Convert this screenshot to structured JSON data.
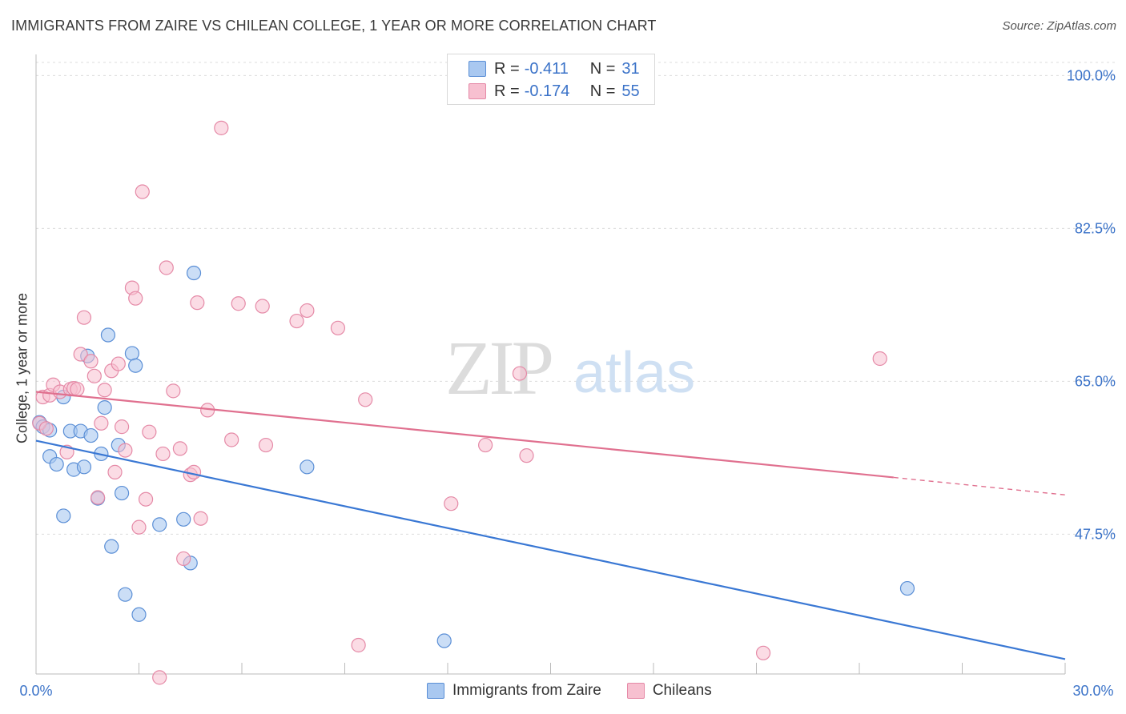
{
  "title": "IMMIGRANTS FROM ZAIRE VS CHILEAN COLLEGE, 1 YEAR OR MORE CORRELATION CHART",
  "source": "Source: ZipAtlas.com",
  "watermark": {
    "zip": "ZIP",
    "atlas": "atlas"
  },
  "legend": {
    "rows": [
      {
        "r_label": "R =",
        "r_value": "-0.411",
        "n_label": "N =",
        "n_value": "31",
        "color": "#a9c8f0"
      },
      {
        "r_label": "R =",
        "r_value": "-0.174",
        "n_label": "N =",
        "n_value": "55",
        "color": "#f7bfd0"
      }
    ]
  },
  "bottom_legend": {
    "series1": "Immigrants from Zaire",
    "series2": "Chileans"
  },
  "colors": {
    "blue_fill": "#a9c8f0",
    "blue_stroke": "#5b8fd6",
    "blue_line": "#3a78d4",
    "pink_fill": "#f7c0d0",
    "pink_stroke": "#e58aa7",
    "pink_line": "#e0708f",
    "tick_text": "#3a72c8",
    "grid": "#dcdcdc"
  },
  "chart_data": {
    "type": "scatter",
    "title": "IMMIGRANTS FROM ZAIRE VS CHILEAN COLLEGE, 1 YEAR OR MORE CORRELATION CHART",
    "xlabel": "",
    "ylabel": "College, 1 year or more",
    "xlim": [
      0,
      30
    ],
    "ylim": [
      31.5,
      101.5
    ],
    "x_tick_labels": [
      "0.0%",
      "30.0%"
    ],
    "y_ticks": [
      47.5,
      65.0,
      82.5,
      100.0
    ],
    "y_tick_labels": [
      "47.5%",
      "65.0%",
      "82.5%",
      "100.0%"
    ],
    "series": [
      {
        "name": "Immigrants from Zaire",
        "points": [
          [
            0.1,
            60.3
          ],
          [
            0.2,
            59.8
          ],
          [
            0.4,
            59.4
          ],
          [
            0.4,
            56.4
          ],
          [
            0.6,
            55.5
          ],
          [
            0.8,
            63.2
          ],
          [
            1.0,
            59.3
          ],
          [
            1.1,
            54.9
          ],
          [
            1.3,
            59.3
          ],
          [
            1.4,
            55.2
          ],
          [
            1.5,
            67.9
          ],
          [
            1.6,
            58.8
          ],
          [
            1.8,
            51.6
          ],
          [
            1.9,
            56.7
          ],
          [
            2.0,
            62.0
          ],
          [
            2.1,
            70.3
          ],
          [
            2.2,
            46.1
          ],
          [
            2.4,
            57.7
          ],
          [
            2.5,
            52.2
          ],
          [
            2.6,
            40.6
          ],
          [
            2.8,
            68.2
          ],
          [
            2.9,
            66.8
          ],
          [
            3.0,
            38.3
          ],
          [
            3.6,
            48.6
          ],
          [
            4.3,
            49.2
          ],
          [
            4.5,
            44.2
          ],
          [
            4.6,
            77.4
          ],
          [
            7.9,
            55.2
          ],
          [
            11.9,
            35.3
          ],
          [
            25.4,
            41.3
          ],
          [
            0.8,
            49.6
          ]
        ],
        "trend": {
          "x": [
            0,
            30
          ],
          "y": [
            58.2,
            33.2
          ]
        }
      },
      {
        "name": "Chileans",
        "points": [
          [
            0.1,
            60.2
          ],
          [
            0.2,
            63.2
          ],
          [
            0.3,
            59.6
          ],
          [
            0.4,
            63.4
          ],
          [
            0.5,
            64.6
          ],
          [
            0.7,
            63.8
          ],
          [
            0.9,
            56.9
          ],
          [
            1.0,
            64.1
          ],
          [
            1.1,
            64.2
          ],
          [
            1.3,
            68.1
          ],
          [
            1.4,
            72.3
          ],
          [
            1.6,
            67.3
          ],
          [
            1.7,
            65.6
          ],
          [
            1.8,
            51.7
          ],
          [
            1.9,
            60.2
          ],
          [
            2.0,
            64.0
          ],
          [
            2.2,
            66.2
          ],
          [
            2.3,
            54.6
          ],
          [
            2.4,
            67.0
          ],
          [
            2.5,
            59.8
          ],
          [
            2.6,
            57.1
          ],
          [
            2.8,
            75.7
          ],
          [
            2.9,
            74.5
          ],
          [
            3.0,
            48.3
          ],
          [
            3.1,
            86.7
          ],
          [
            3.2,
            51.5
          ],
          [
            3.3,
            59.2
          ],
          [
            3.6,
            31.1
          ],
          [
            3.7,
            56.7
          ],
          [
            3.8,
            78.0
          ],
          [
            4.0,
            63.9
          ],
          [
            4.2,
            57.3
          ],
          [
            4.3,
            44.7
          ],
          [
            4.5,
            54.3
          ],
          [
            4.6,
            54.6
          ],
          [
            4.7,
            74.0
          ],
          [
            4.8,
            49.3
          ],
          [
            5.0,
            61.7
          ],
          [
            5.4,
            94.0
          ],
          [
            5.7,
            58.3
          ],
          [
            5.9,
            73.9
          ],
          [
            6.6,
            73.6
          ],
          [
            6.7,
            57.7
          ],
          [
            7.6,
            71.9
          ],
          [
            7.9,
            73.1
          ],
          [
            8.8,
            71.1
          ],
          [
            9.4,
            34.8
          ],
          [
            9.6,
            62.9
          ],
          [
            12.1,
            51.0
          ],
          [
            13.1,
            57.7
          ],
          [
            14.1,
            65.9
          ],
          [
            14.3,
            56.5
          ],
          [
            21.2,
            33.9
          ],
          [
            24.6,
            67.6
          ],
          [
            1.2,
            64.1
          ]
        ],
        "trend": {
          "x": [
            0,
            25.0
          ],
          "y": [
            63.8,
            54.0
          ]
        },
        "trend_dashed": {
          "x": [
            25.0,
            30
          ],
          "y": [
            54.0,
            52.0
          ]
        }
      }
    ]
  }
}
